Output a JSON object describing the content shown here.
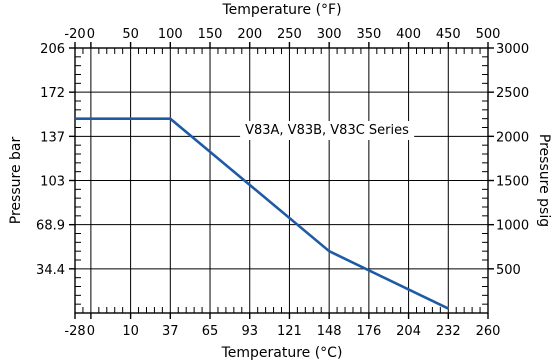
{
  "chart_data": {
    "type": "line",
    "series_label": "V83A, V83B, V83C Series",
    "top_axis": {
      "title": "Temperature (°F)",
      "range": [
        -20,
        500
      ],
      "ticks": [
        -20,
        0,
        50,
        100,
        150,
        200,
        250,
        300,
        350,
        400,
        450,
        500
      ],
      "tick_labels": [
        "-20",
        "0",
        "50",
        "100",
        "150",
        "200",
        "250",
        "300",
        "350",
        "400",
        "450",
        "500"
      ]
    },
    "bottom_axis": {
      "title": "Temperature (°C)",
      "tick_labels": [
        "-28",
        "0",
        "10",
        "37",
        "65",
        "93",
        "121",
        "148",
        "176",
        "204",
        "232",
        "260"
      ]
    },
    "left_axis": {
      "title": "Pressure bar",
      "tick_labels": [
        "34.4",
        "68.9",
        "103",
        "137",
        "172",
        "206"
      ]
    },
    "right_axis": {
      "title": "Pressure psig",
      "range": [
        0,
        3000
      ],
      "ticks": [
        500,
        1000,
        1500,
        2000,
        2500,
        3000
      ],
      "tick_labels": [
        "500",
        "1000",
        "1500",
        "2000",
        "2500",
        "3000"
      ]
    },
    "series": [
      {
        "x_F": [
          -20,
          100,
          300,
          450
        ],
        "y_psig": [
          2200,
          2200,
          700,
          50
        ]
      }
    ],
    "grid": true,
    "line_color": "#1f5aa6"
  }
}
